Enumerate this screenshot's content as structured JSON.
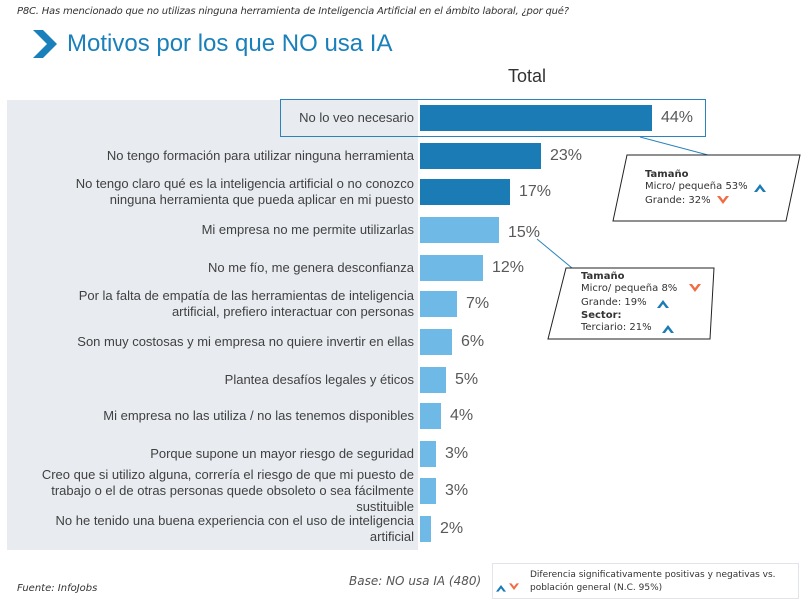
{
  "header": {
    "question": "P8C. Has mencionado que no utilizas ninguna herramienta de Inteligencia Artificial en el ámbito laboral, ¿por qué?",
    "title": "Motivos por los que NO usa IA"
  },
  "colors": {
    "accent": "#1a80bb",
    "bar_dark": "#1a7bb5",
    "bar_light": "#6fb9e6",
    "panel_bg": "#e8ecf1",
    "up_arrow": "#1a7bb5",
    "down_arrow": "#f26b43"
  },
  "chart_data": {
    "type": "bar",
    "orientation": "horizontal",
    "title": "Total",
    "xlabel": "",
    "ylabel": "",
    "xlim": [
      0,
      50
    ],
    "grid": false,
    "categories": [
      "No lo veo necesario",
      "No tengo formación para utilizar ninguna herramienta",
      "No tengo claro qué es la inteligencia artificial o no conozco ninguna herramienta que pueda aplicar en mi puesto",
      "Mi empresa no me permite utilizarlas",
      "No me fío, me genera desconfianza",
      "Por la falta de empatía de las herramientas de inteligencia artificial, prefiero interactuar con personas",
      "Son muy costosas y mi empresa no quiere invertir en ellas",
      "Plantea desafíos legales y éticos",
      "Mi empresa no las utiliza / no las tenemos disponibles",
      "Porque supone un mayor riesgo de seguridad",
      "Creo que si utilizo alguna, correría el riesgo de que mi puesto de trabajo o el de otras personas quede obsoleto o sea fácilmente sustituible",
      "No he tenido una buena experiencia con el uso de inteligencia artificial"
    ],
    "label_lines": [
      [
        "No lo veo necesario"
      ],
      [
        "No tengo formación para utilizar ninguna herramienta"
      ],
      [
        "No tengo claro qué es la inteligencia artificial o no conozco",
        "ninguna herramienta que pueda aplicar en mi puesto"
      ],
      [
        "Mi empresa no me permite utilizarlas"
      ],
      [
        "No me fío, me genera desconfianza"
      ],
      [
        "Por la falta de empatía de las herramientas de inteligencia",
        "artificial, prefiero interactuar con personas"
      ],
      [
        "Son muy costosas y mi empresa no quiere invertir en ellas"
      ],
      [
        "Plantea desafíos legales y éticos"
      ],
      [
        "Mi empresa no las utiliza / no las tenemos disponibles"
      ],
      [
        "Porque supone un mayor riesgo de seguridad"
      ],
      [
        "Creo que si utilizo alguna, correría el riesgo de que mi puesto de",
        "trabajo o el de otras personas quede obsoleto o sea fácilmente",
        "sustituible"
      ],
      [
        "No he tenido una buena experiencia con el uso de inteligencia",
        "artificial"
      ]
    ],
    "values": [
      44,
      23,
      17,
      15,
      12,
      7,
      6,
      5,
      4,
      3,
      3,
      2
    ],
    "value_labels": [
      "44%",
      "23%",
      "17%",
      "15%",
      "12%",
      "7%",
      "6%",
      "5%",
      "4%",
      "3%",
      "3%",
      "2%"
    ],
    "bar_tone": [
      "dark",
      "dark",
      "dark",
      "light",
      "light",
      "light",
      "light",
      "light",
      "light",
      "light",
      "light",
      "light"
    ],
    "highlighted_category": "No lo veo necesario",
    "annotations": [
      {
        "target": "No lo veo necesario",
        "sections": [
          {
            "title": "Tamaño",
            "rows": [
              {
                "text": "Micro/ pequeña 53%",
                "direction": "up"
              },
              {
                "text": "Grande: 32%",
                "direction": "down"
              }
            ]
          }
        ]
      },
      {
        "target": "Mi empresa no me permite utilizarlas",
        "sections": [
          {
            "title": "Tamaño",
            "rows": [
              {
                "text": "Micro/ pequeña 8%",
                "direction": "down"
              },
              {
                "text": "Grande: 19%",
                "direction": "up"
              }
            ]
          },
          {
            "title": "Sector:",
            "rows": [
              {
                "text": "Terciario: 21%",
                "direction": "up"
              }
            ]
          }
        ]
      }
    ]
  },
  "footer": {
    "source": "Fuente: InfoJobs",
    "base": "Base: NO usa IA (480)",
    "legend": "Diferencia significativamente  positivas y negativas vs. población general (N.C. 95%)"
  }
}
